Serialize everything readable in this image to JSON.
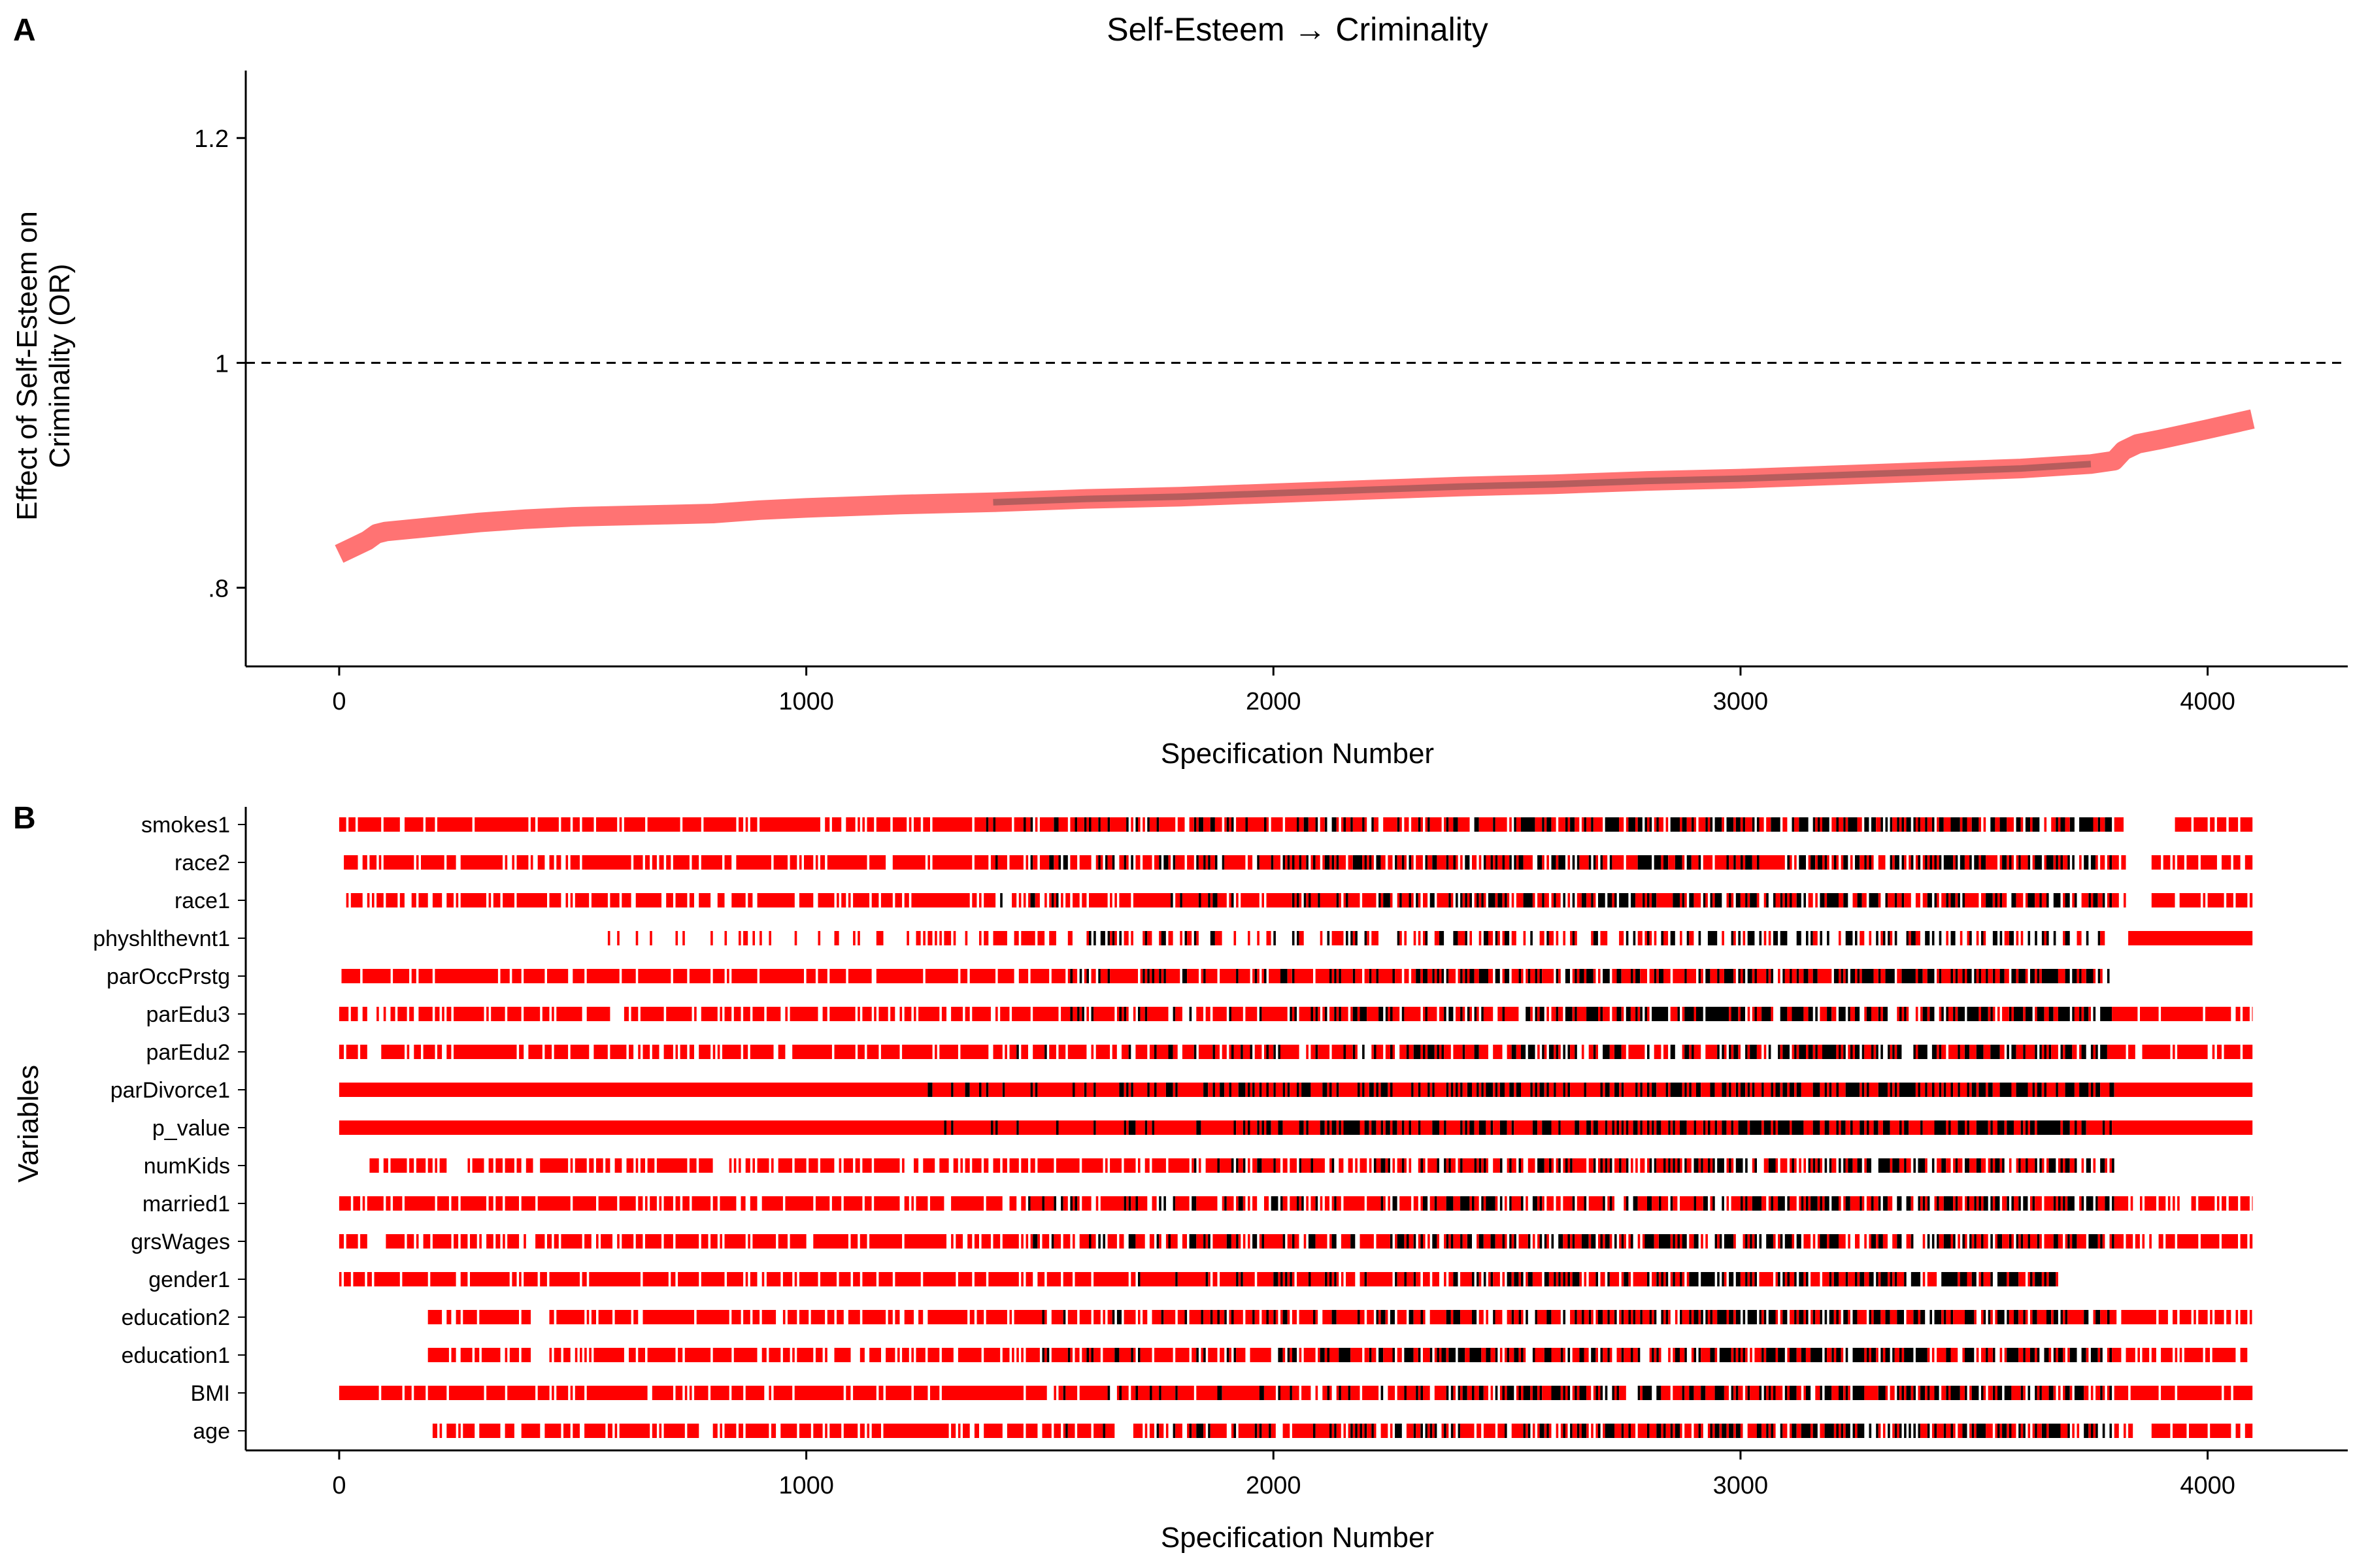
{
  "panel_a": {
    "letter": "A",
    "title": "Self-Esteem → Criminality",
    "ylabel_line1": "Effect of Self-Esteem on",
    "ylabel_line2": "Criminality (OR)",
    "xlabel": "Specification Number"
  },
  "panel_b": {
    "letter": "B",
    "ylabel": "Variables",
    "xlabel": "Specification Number"
  },
  "colors": {
    "accent": "#ff0000",
    "curve": "#ff7373",
    "sig": "#000000",
    "ref_line": "#000000"
  },
  "chart_data": [
    {
      "type": "line",
      "title": "Self-Esteem → Criminality",
      "xlabel": "Specification Number",
      "ylabel": "Effect of Self-Esteem on Criminality (OR)",
      "xlim": [
        -200,
        4300
      ],
      "ylim": [
        0.73,
        1.26
      ],
      "x_ticks": [
        0,
        1000,
        2000,
        3000,
        4000
      ],
      "x_tick_labels": [
        "0",
        "1000",
        "2000",
        "3000",
        "4000"
      ],
      "y_ticks": [
        0.8,
        1.0,
        1.2
      ],
      "y_tick_labels": [
        ".8",
        "1",
        "1.2"
      ],
      "reference_line": {
        "y": 1.0,
        "style": "dashed"
      },
      "grid": false,
      "series": [
        {
          "x": [
            0,
            30,
            60,
            80,
            100,
            200,
            300,
            400,
            500,
            600,
            700,
            800,
            900,
            1000,
            1200,
            1400,
            1600,
            1800,
            2000,
            2200,
            2400,
            2600,
            2800,
            3000,
            3200,
            3400,
            3600,
            3750,
            3800,
            3820,
            3850,
            3900,
            4000,
            4096
          ],
          "y": [
            0.83,
            0.836,
            0.842,
            0.848,
            0.85,
            0.854,
            0.858,
            0.861,
            0.863,
            0.864,
            0.865,
            0.866,
            0.869,
            0.871,
            0.874,
            0.876,
            0.879,
            0.881,
            0.884,
            0.887,
            0.89,
            0.892,
            0.895,
            0.897,
            0.9,
            0.903,
            0.906,
            0.91,
            0.913,
            0.922,
            0.928,
            0.932,
            0.941,
            0.95
          ]
        }
      ]
    },
    {
      "type": "heatmap",
      "xlabel": "Specification Number",
      "ylabel": "Variables",
      "xlim": [
        -200,
        4300
      ],
      "x_ticks": [
        0,
        1000,
        2000,
        3000,
        4000
      ],
      "x_tick_labels": [
        "0",
        "1000",
        "2000",
        "3000",
        "4000"
      ],
      "variables": [
        {
          "name": "smokes1",
          "start": 0,
          "end": 4096,
          "gaps": [
            [
              3820,
              3930
            ]
          ],
          "density": 0.85,
          "black_from": 1380
        },
        {
          "name": "race2",
          "start": 10,
          "end": 4096,
          "gaps": [
            [
              3825,
              3880
            ]
          ],
          "density": 0.82,
          "black_from": 1400
        },
        {
          "name": "race1",
          "start": 10,
          "end": 4096,
          "gaps": [
            [
              3825,
              3880
            ]
          ],
          "density": 0.82,
          "black_from": 1400
        },
        {
          "name": "physhlthevnt1",
          "start": 480,
          "end": 4096,
          "gaps": [
            [
              3790,
              3830
            ]
          ],
          "density": 0.45,
          "black_from": 1350,
          "dense_from": 3830
        },
        {
          "name": "parOccPrstg",
          "start": 0,
          "end": 3790,
          "gaps": [],
          "density": 0.9,
          "black_from": 1550
        },
        {
          "name": "parEdu3",
          "start": 0,
          "end": 4096,
          "gaps": [
            [
              65,
              80
            ]
          ],
          "density": 0.8,
          "black_from": 1450
        },
        {
          "name": "parEdu2",
          "start": 0,
          "end": 4096,
          "gaps": [
            [
              65,
              80
            ]
          ],
          "density": 0.8,
          "black_from": 1450
        },
        {
          "name": "parDivorce1",
          "start": 0,
          "end": 4096,
          "gaps": [],
          "density": 1.0,
          "black_from": 1250
        },
        {
          "name": "p_value",
          "start": 0,
          "end": 4096,
          "gaps": [],
          "density": 1.0,
          "black_from": 1250
        },
        {
          "name": "numKids",
          "start": 65,
          "end": 3800,
          "gaps": [
            [
              230,
              270
            ],
            [
              800,
              830
            ]
          ],
          "density": 0.75,
          "black_from": 1750
        },
        {
          "name": "married1",
          "start": 0,
          "end": 4096,
          "gaps": [],
          "density": 0.8,
          "black_from": 1450
        },
        {
          "name": "grsWages",
          "start": 0,
          "end": 4096,
          "gaps": [
            [
              60,
              100
            ]
          ],
          "density": 0.8,
          "black_from": 1450
        },
        {
          "name": "gender1",
          "start": 0,
          "end": 3680,
          "gaps": [],
          "density": 0.85,
          "black_from": 1700
        },
        {
          "name": "education2",
          "start": 190,
          "end": 4096,
          "gaps": [
            [
              410,
              450
            ]
          ],
          "density": 0.8,
          "black_from": 1500
        },
        {
          "name": "education1",
          "start": 190,
          "end": 4096,
          "gaps": [
            [
              410,
              450
            ]
          ],
          "density": 0.8,
          "black_from": 1500
        },
        {
          "name": "BMI",
          "start": 0,
          "end": 4096,
          "gaps": [],
          "density": 0.85,
          "black_from": 1450
        },
        {
          "name": "age",
          "start": 200,
          "end": 4096,
          "gaps": [
            [
              770,
              800
            ],
            [
              1660,
              1700
            ],
            [
              3840,
              3880
            ]
          ],
          "density": 0.8,
          "black_from": 1500
        }
      ]
    }
  ]
}
